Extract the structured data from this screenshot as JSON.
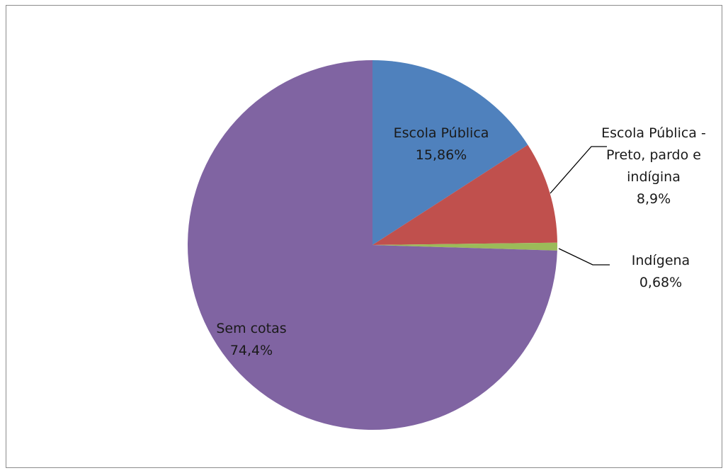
{
  "chart_data": {
    "type": "pie",
    "title": "",
    "slices": [
      {
        "label": "Escola Pública",
        "value": 15.86,
        "display": "15,86%",
        "color": "#4f81bd",
        "label_lines": [
          "Escola Pública"
        ]
      },
      {
        "label": "Escola Pública - Preto, pardo e indígina",
        "value": 8.9,
        "display": "8,9%",
        "color": "#c0504d",
        "label_lines": [
          "Escola Pública -",
          "Preto, pardo e",
          "indígina"
        ]
      },
      {
        "label": "Indígena",
        "value": 0.68,
        "display": "0,68%",
        "color": "#9bbb59",
        "label_lines": [
          "Indígena"
        ]
      },
      {
        "label": "Sem cotas",
        "value": 74.4,
        "display": "74,4%",
        "color": "#8064a2",
        "label_lines": [
          "Sem cotas"
        ]
      }
    ],
    "legend": "none",
    "start_angle": "12 o'clock",
    "direction": "clockwise"
  }
}
